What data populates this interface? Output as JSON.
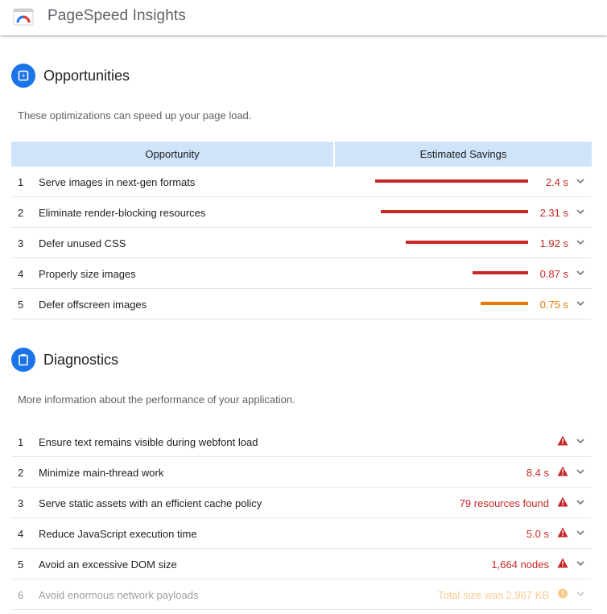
{
  "app": {
    "title": "PageSpeed Insights"
  },
  "colors": {
    "accent": "#1a73e8",
    "fail": "#c62828",
    "average": "#e67700",
    "header_bg": "#cfe3fb"
  },
  "opportunities": {
    "title": "Opportunities",
    "icon": "opportunity-icon",
    "description": "These optimizations can speed up your page load.",
    "columns": [
      "Opportunity",
      "Estimated Savings"
    ],
    "rows": [
      {
        "num": "1",
        "label": "Serve images in next-gen formats",
        "savings": "2.4 s",
        "fraction": 1.0,
        "status": "fail"
      },
      {
        "num": "2",
        "label": "Eliminate render-blocking resources",
        "savings": "2.31 s",
        "fraction": 0.962,
        "status": "fail"
      },
      {
        "num": "3",
        "label": "Defer unused CSS",
        "savings": "1.92 s",
        "fraction": 0.8,
        "status": "fail"
      },
      {
        "num": "4",
        "label": "Properly size images",
        "savings": "0.87 s",
        "fraction": 0.362,
        "status": "fail"
      },
      {
        "num": "5",
        "label": "Defer offscreen images",
        "savings": "0.75 s",
        "fraction": 0.312,
        "status": "average"
      }
    ]
  },
  "diagnostics": {
    "title": "Diagnostics",
    "icon": "clipboard-icon",
    "description": "More information about the performance of your application.",
    "rows": [
      {
        "num": "1",
        "label": "Ensure text remains visible during webfont load",
        "value": "",
        "status": "fail"
      },
      {
        "num": "2",
        "label": "Minimize main-thread work",
        "value": "8.4 s",
        "status": "fail"
      },
      {
        "num": "3",
        "label": "Serve static assets with an efficient cache policy",
        "value": "79 resources found",
        "status": "fail"
      },
      {
        "num": "4",
        "label": "Reduce JavaScript execution time",
        "value": "5.0 s",
        "status": "fail"
      },
      {
        "num": "5",
        "label": "Avoid an excessive DOM size",
        "value": "1,664 nodes",
        "status": "fail"
      },
      {
        "num": "6",
        "label": "Avoid enormous network payloads",
        "value": "Total size was 2,967 KB",
        "status": "average"
      }
    ]
  }
}
